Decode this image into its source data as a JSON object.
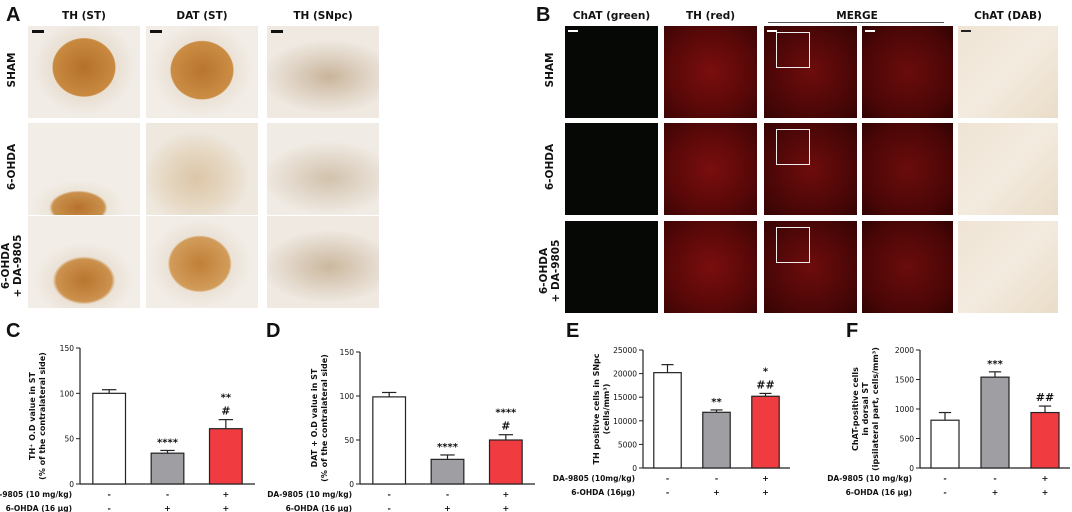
{
  "panelA": {
    "letter": "A",
    "columns": [
      "TH (ST)",
      "DAT (ST)",
      "TH (SNpc)"
    ],
    "rows": [
      "SHAM",
      "6-OHDA",
      "6-OHDA\n+ DA-9805"
    ]
  },
  "panelB": {
    "letter": "B",
    "columns": [
      "ChAT (green)",
      "TH (red)",
      "MERGE",
      "ChAT (DAB)"
    ],
    "rows": [
      "SHAM",
      "6-OHDA",
      "6-OHDA\n+ DA-9805"
    ]
  },
  "colors": {
    "white": "#ffffff",
    "gray": "#9e9ea3",
    "red": "#f03c41",
    "dab": "#b8732c"
  },
  "chart_data": [
    {
      "letter": "C",
      "type": "bar",
      "ylabel": "TH⁺ O.D value in ST\n(% of the contralateral side)",
      "ylim": [
        0,
        150
      ],
      "yticks": [
        0,
        50,
        100,
        150
      ],
      "values": [
        100,
        34,
        61
      ],
      "errors": [
        4,
        3,
        10
      ],
      "annotations": [
        [],
        [
          "****"
        ],
        [
          "**",
          "#"
        ]
      ],
      "treatments": [
        {
          "label": "DA-9805 (10 mg/kg)",
          "marks": [
            "-",
            "-",
            "+"
          ]
        },
        {
          "label": "6-OHDA  (16 μg)",
          "marks": [
            "-",
            "+",
            "+"
          ]
        }
      ]
    },
    {
      "letter": "D",
      "type": "bar",
      "ylabel": "DAT + O.D value in ST\n(% of the contralateral side)",
      "ylim": [
        0,
        150
      ],
      "yticks": [
        0,
        50,
        100,
        150
      ],
      "values": [
        99,
        28,
        50
      ],
      "errors": [
        5,
        5,
        6
      ],
      "annotations": [
        [],
        [
          "****"
        ],
        [
          "****",
          "#"
        ]
      ],
      "treatments": [
        {
          "label": "DA-9805 (10 mg/kg)",
          "marks": [
            "-",
            "-",
            "+"
          ]
        },
        {
          "label": "6-OHDA  (16 μg)",
          "marks": [
            "-",
            "+",
            "+"
          ]
        }
      ]
    },
    {
      "letter": "E",
      "type": "bar",
      "ylabel": "TH positive cells in SNpc\n(cells/mm³)",
      "ylim": [
        0,
        25000
      ],
      "yticks": [
        0,
        5000,
        10000,
        15000,
        20000,
        25000
      ],
      "values": [
        20200,
        11800,
        15200
      ],
      "errors": [
        1700,
        500,
        600
      ],
      "annotations": [
        [],
        [
          "**"
        ],
        [
          "*",
          "##"
        ]
      ],
      "treatments": [
        {
          "label": "DA-9805 (10mg/kg)",
          "marks": [
            "-",
            "-",
            "+"
          ]
        },
        {
          "label": "6-OHDA  (16μg)",
          "marks": [
            "-",
            "+",
            "+"
          ]
        }
      ]
    },
    {
      "letter": "F",
      "type": "bar",
      "ylabel": "ChAT-positive cells\nin dorsal ST\n(ipsilateral part, cells/mm³)",
      "ylim": [
        0,
        2000
      ],
      "yticks": [
        0,
        500,
        1000,
        1500,
        2000
      ],
      "values": [
        810,
        1540,
        940
      ],
      "errors": [
        130,
        90,
        110
      ],
      "annotations": [
        [],
        [
          "***"
        ],
        [
          "##"
        ]
      ],
      "treatments": [
        {
          "label": "DA-9805 (10 mg/kg)",
          "marks": [
            "-",
            "-",
            "+"
          ]
        },
        {
          "label": "6-OHDA  (16 μg)",
          "marks": [
            "-",
            "+",
            "+"
          ]
        }
      ]
    }
  ]
}
